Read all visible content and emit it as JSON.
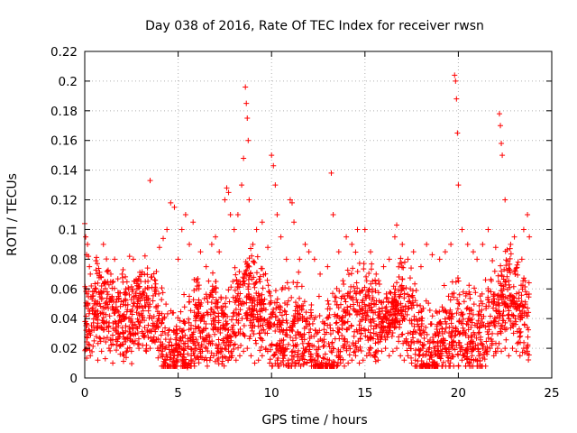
{
  "chart_data": {
    "type": "scatter",
    "title": "Day 038 of 2016, Rate Of TEC Index for receiver rwsn",
    "xlabel": "GPS time / hours",
    "ylabel": "ROTI / TECUs",
    "xlim": [
      0,
      25
    ],
    "ylim": [
      0,
      0.22
    ],
    "xticks": [
      0,
      5,
      10,
      15,
      20,
      25
    ],
    "xtick_labels": [
      "0",
      "5",
      "10",
      "15",
      "20",
      "25"
    ],
    "yticks": [
      0,
      0.02,
      0.04,
      0.06,
      0.08,
      0.1,
      0.12,
      0.14,
      0.16,
      0.18,
      0.2,
      0.22
    ],
    "ytick_labels": [
      "0",
      "0.02",
      "0.04",
      "0.06",
      "0.08",
      "0.1",
      "0.12",
      "0.14",
      "0.16",
      "0.18",
      "0.2",
      "0.22"
    ],
    "grid": true,
    "legend": "none",
    "marker": "plus",
    "color": "#ff0000",
    "series": [
      {
        "x": [
          0.0,
          0.05,
          0.1,
          0.15,
          0.2,
          0.25,
          0.3,
          0.35,
          0.4,
          0.5,
          0.6,
          0.7,
          0.8,
          0.9,
          1.0,
          1.2,
          1.4,
          1.6,
          1.8,
          2.0,
          2.2,
          2.4,
          2.6,
          2.8,
          3.0,
          3.2,
          3.5,
          3.8,
          4.0,
          4.2,
          4.4,
          4.6,
          4.8,
          5.0,
          5.2,
          5.4,
          5.6,
          5.8,
          6.0,
          6.2,
          6.5,
          6.8,
          7.0,
          7.2,
          7.5,
          7.6,
          7.7,
          7.8,
          8.0,
          8.2,
          8.4,
          8.5,
          8.6,
          8.65,
          8.7,
          8.75,
          8.8,
          9.0,
          9.2,
          9.5,
          9.8,
          10.0,
          10.1,
          10.2,
          10.3,
          10.5,
          10.8,
          11.0,
          11.1,
          11.2,
          11.5,
          11.8,
          12.0,
          12.3,
          12.6,
          13.0,
          13.2,
          13.3,
          13.6,
          14.0,
          14.3,
          14.6,
          15.0,
          15.3,
          15.6,
          16.0,
          16.3,
          16.6,
          16.7,
          17.0,
          17.3,
          17.6,
          18.0,
          18.3,
          18.6,
          19.0,
          19.3,
          19.6,
          19.8,
          19.85,
          19.9,
          19.95,
          20.0,
          20.2,
          20.5,
          20.8,
          21.0,
          21.3,
          21.6,
          22.0,
          22.2,
          22.25,
          22.3,
          22.35,
          22.5,
          22.8,
          23.0,
          23.2,
          23.4,
          23.5,
          23.7,
          23.8
        ],
        "y": [
          0.104,
          0.095,
          0.083,
          0.09,
          0.082,
          0.075,
          0.07,
          0.062,
          0.055,
          0.05,
          0.06,
          0.045,
          0.05,
          0.062,
          0.09,
          0.058,
          0.07,
          0.08,
          0.055,
          0.07,
          0.06,
          0.082,
          0.08,
          0.06,
          0.065,
          0.07,
          0.133,
          0.06,
          0.088,
          0.094,
          0.1,
          0.118,
          0.115,
          0.08,
          0.1,
          0.11,
          0.09,
          0.105,
          0.06,
          0.085,
          0.075,
          0.09,
          0.095,
          0.085,
          0.12,
          0.128,
          0.125,
          0.11,
          0.1,
          0.11,
          0.13,
          0.148,
          0.196,
          0.185,
          0.175,
          0.16,
          0.12,
          0.09,
          0.1,
          0.105,
          0.088,
          0.15,
          0.143,
          0.13,
          0.11,
          0.095,
          0.08,
          0.12,
          0.118,
          0.105,
          0.08,
          0.09,
          0.085,
          0.08,
          0.07,
          0.075,
          0.138,
          0.11,
          0.085,
          0.095,
          0.09,
          0.1,
          0.1,
          0.085,
          0.07,
          0.075,
          0.08,
          0.095,
          0.103,
          0.09,
          0.08,
          0.085,
          0.075,
          0.09,
          0.083,
          0.08,
          0.085,
          0.09,
          0.204,
          0.2,
          0.188,
          0.165,
          0.13,
          0.1,
          0.09,
          0.085,
          0.08,
          0.09,
          0.1,
          0.088,
          0.178,
          0.17,
          0.158,
          0.15,
          0.12,
          0.09,
          0.095,
          0.078,
          0.08,
          0.1,
          0.11,
          0.095
        ]
      },
      {
        "x": [
          0.1,
          0.3,
          0.5,
          0.7,
          0.9,
          1.1,
          1.3,
          1.5,
          1.7,
          1.9,
          2.1,
          2.3,
          2.5,
          2.7,
          2.9,
          3.1,
          3.3,
          3.5,
          3.7,
          3.9,
          4.1,
          4.3,
          4.5,
          4.7,
          4.9,
          5.1,
          5.3,
          5.5,
          5.7,
          5.9,
          6.1,
          6.3,
          6.5,
          6.7,
          6.9,
          7.1,
          7.3,
          7.5,
          7.7,
          7.9,
          8.1,
          8.3,
          8.5,
          8.7,
          8.9,
          9.1,
          9.3,
          9.5,
          9.7,
          9.9,
          10.1,
          10.3,
          10.5,
          10.7,
          10.9,
          11.1,
          11.3,
          11.5,
          11.7,
          11.9,
          12.1,
          12.3,
          12.5,
          12.7,
          12.9,
          13.1,
          13.3,
          13.5,
          13.7,
          13.9,
          14.1,
          14.3,
          14.5,
          14.7,
          14.9,
          15.1,
          15.3,
          15.5,
          15.7,
          15.9,
          16.1,
          16.3,
          16.5,
          16.7,
          16.9,
          17.1,
          17.3,
          17.5,
          17.7,
          17.9,
          18.1,
          18.3,
          18.5,
          18.7,
          18.9,
          19.1,
          19.3,
          19.5,
          19.7,
          19.9,
          20.1,
          20.3,
          20.5,
          20.7,
          20.9,
          21.1,
          21.3,
          21.5,
          21.7,
          21.9,
          22.1,
          22.3,
          22.5,
          22.7,
          22.9,
          23.1,
          23.3,
          23.5,
          23.7
        ],
        "y": [
          0.02,
          0.015,
          0.025,
          0.012,
          0.018,
          0.013,
          0.02,
          0.01,
          0.022,
          0.016,
          0.015,
          0.02,
          0.018,
          0.025,
          0.02,
          0.022,
          0.018,
          0.02,
          0.025,
          0.02,
          0.016,
          0.02,
          0.022,
          0.018,
          0.02,
          0.02,
          0.01,
          0.007,
          0.015,
          0.02,
          0.022,
          0.018,
          0.02,
          0.012,
          0.015,
          0.02,
          0.018,
          0.02,
          0.018,
          0.015,
          0.012,
          0.015,
          0.018,
          0.02,
          0.015,
          0.01,
          0.012,
          0.015,
          0.02,
          0.01,
          0.015,
          0.012,
          0.018,
          0.015,
          0.012,
          0.015,
          0.01,
          0.012,
          0.015,
          0.01,
          0.012,
          0.012,
          0.015,
          0.008,
          0.01,
          0.012,
          0.02,
          0.015,
          0.01,
          0.008,
          0.01,
          0.012,
          0.015,
          0.01,
          0.012,
          0.015,
          0.02,
          0.015,
          0.012,
          0.018,
          0.02,
          0.015,
          0.018,
          0.02,
          0.015,
          0.012,
          0.015,
          0.01,
          0.012,
          0.015,
          0.02,
          0.018,
          0.015,
          0.02,
          0.018,
          0.015,
          0.02,
          0.018,
          0.02,
          0.022,
          0.018,
          0.015,
          0.02,
          0.018,
          0.02,
          0.015,
          0.02,
          0.018,
          0.02,
          0.015,
          0.02,
          0.018,
          0.02,
          0.015,
          0.02,
          0.018,
          0.015,
          0.02,
          0.018
        ]
      }
    ]
  }
}
